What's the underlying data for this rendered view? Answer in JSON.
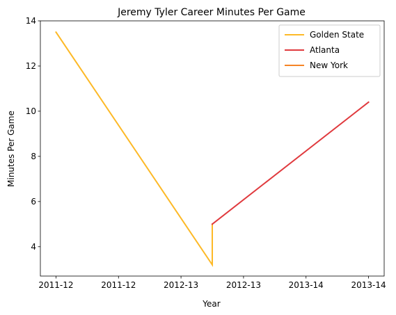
{
  "chart_data": {
    "type": "line",
    "title": "Jeremy Tyler Career Minutes Per Game",
    "xlabel": "Year",
    "ylabel": "Minutes Per Game",
    "xlim": [
      -0.1,
      2.1
    ],
    "ylim": [
      2.7,
      14.0
    ],
    "x_ticks": [
      {
        "value": 0.0,
        "label": "2011-12"
      },
      {
        "value": 0.4,
        "label": "2011-12"
      },
      {
        "value": 0.8,
        "label": "2012-13"
      },
      {
        "value": 1.2,
        "label": "2012-13"
      },
      {
        "value": 1.6,
        "label": "2013-14"
      },
      {
        "value": 2.0,
        "label": "2013-14"
      }
    ],
    "y_ticks": [
      4,
      6,
      8,
      10,
      12,
      14
    ],
    "legend_position": "top-right",
    "grid": false,
    "series": [
      {
        "name": "Golden State",
        "color": "#fdb927",
        "points": [
          [
            0.0,
            13.5
          ],
          [
            1.0,
            3.2
          ],
          [
            1.0,
            5.0
          ]
        ]
      },
      {
        "name": "Atlanta",
        "color": "#e03a3e",
        "points": [
          [
            1.0,
            5.0
          ],
          [
            2.0,
            10.4
          ]
        ]
      },
      {
        "name": "New York",
        "color": "#f58426",
        "points": []
      }
    ]
  }
}
